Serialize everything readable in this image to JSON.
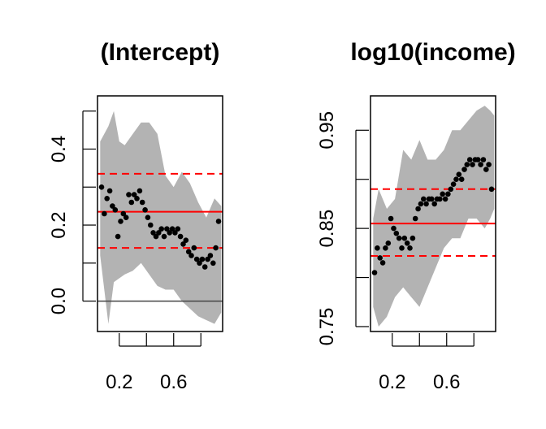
{
  "chart_data": [
    {
      "type": "scatter",
      "title": "(Intercept)",
      "xlabel": "",
      "ylabel": "",
      "xlim": [
        0.04,
        0.96
      ],
      "ylim": [
        -0.08,
        0.54
      ],
      "x_ticks": [
        0.2,
        0.6
      ],
      "x_tick_labels": [
        "0.2",
        "0.6"
      ],
      "x_minor_ticks": [
        0.2,
        0.4,
        0.6,
        0.8
      ],
      "y_ticks": [
        0.0,
        0.1,
        0.2,
        0.3,
        0.4,
        0.5
      ],
      "y_tick_labels": [
        {
          "value": 0.0,
          "label": "0.0"
        },
        {
          "value": 0.2,
          "label": "0.2"
        },
        {
          "value": 0.4,
          "label": "0.4"
        }
      ],
      "reference_lines": {
        "zero": 0.0,
        "mean": 0.235,
        "lower": 0.14,
        "upper": 0.335
      },
      "band": {
        "x": [
          0.06,
          0.12,
          0.16,
          0.2,
          0.24,
          0.3,
          0.36,
          0.42,
          0.48,
          0.54,
          0.6,
          0.66,
          0.72,
          0.78,
          0.84,
          0.9,
          0.95
        ],
        "upper": [
          0.42,
          0.46,
          0.5,
          0.42,
          0.41,
          0.44,
          0.47,
          0.47,
          0.44,
          0.33,
          0.3,
          0.34,
          0.31,
          0.26,
          0.22,
          0.27,
          0.25
        ],
        "lower": [
          0.12,
          -0.06,
          0.05,
          0.06,
          0.07,
          0.08,
          0.1,
          0.07,
          0.04,
          0.03,
          0.03,
          0.0,
          -0.02,
          -0.04,
          -0.05,
          -0.06,
          -0.03
        ]
      },
      "series": [
        {
          "x": [
            0.07,
            0.09,
            0.11,
            0.13,
            0.15,
            0.17,
            0.19,
            0.21,
            0.23,
            0.25,
            0.27,
            0.29,
            0.31,
            0.33,
            0.35,
            0.37,
            0.39,
            0.41,
            0.43,
            0.45,
            0.47,
            0.49,
            0.51,
            0.53,
            0.55,
            0.57,
            0.59,
            0.61,
            0.63,
            0.65,
            0.67,
            0.69,
            0.71,
            0.73,
            0.75,
            0.77,
            0.79,
            0.81,
            0.83,
            0.85,
            0.87,
            0.89,
            0.91,
            0.93
          ],
          "y": [
            0.3,
            0.23,
            0.27,
            0.29,
            0.25,
            0.24,
            0.17,
            0.21,
            0.23,
            0.22,
            0.28,
            0.26,
            0.28,
            0.27,
            0.29,
            0.26,
            0.24,
            0.22,
            0.2,
            0.18,
            0.17,
            0.18,
            0.19,
            0.17,
            0.19,
            0.18,
            0.19,
            0.18,
            0.19,
            0.17,
            0.15,
            0.16,
            0.13,
            0.12,
            0.14,
            0.11,
            0.1,
            0.11,
            0.09,
            0.11,
            0.12,
            0.1,
            0.14,
            0.21
          ]
        }
      ]
    },
    {
      "type": "scatter",
      "title": "log10(income)",
      "xlabel": "",
      "ylabel": "",
      "xlim": [
        0.04,
        0.96
      ],
      "ylim": [
        0.745,
        0.985
      ],
      "x_ticks": [
        0.2,
        0.6
      ],
      "x_tick_labels": [
        "0.2",
        "0.6"
      ],
      "x_minor_ticks": [
        0.2,
        0.4,
        0.6,
        0.8
      ],
      "y_ticks": [
        0.75,
        0.8,
        0.85,
        0.9,
        0.95
      ],
      "y_tick_labels": [
        {
          "value": 0.75,
          "label": "0.75"
        },
        {
          "value": 0.85,
          "label": "0.85"
        },
        {
          "value": 0.95,
          "label": "0.95"
        }
      ],
      "reference_lines": {
        "mean": 0.855,
        "lower": 0.822,
        "upper": 0.89
      },
      "band": {
        "x": [
          0.06,
          0.1,
          0.16,
          0.22,
          0.28,
          0.34,
          0.4,
          0.46,
          0.52,
          0.58,
          0.64,
          0.7,
          0.76,
          0.82,
          0.88,
          0.92,
          0.95
        ],
        "upper": [
          0.86,
          0.89,
          0.87,
          0.88,
          0.93,
          0.92,
          0.94,
          0.92,
          0.92,
          0.93,
          0.95,
          0.95,
          0.96,
          0.97,
          0.975,
          0.97,
          0.965
        ],
        "lower": [
          0.77,
          0.75,
          0.76,
          0.78,
          0.79,
          0.78,
          0.77,
          0.79,
          0.81,
          0.83,
          0.84,
          0.84,
          0.86,
          0.86,
          0.85,
          0.86,
          0.87
        ]
      },
      "series": [
        {
          "x": [
            0.07,
            0.09,
            0.11,
            0.13,
            0.15,
            0.17,
            0.19,
            0.21,
            0.23,
            0.25,
            0.27,
            0.29,
            0.31,
            0.33,
            0.35,
            0.37,
            0.39,
            0.41,
            0.43,
            0.45,
            0.47,
            0.49,
            0.51,
            0.53,
            0.55,
            0.57,
            0.59,
            0.61,
            0.63,
            0.65,
            0.67,
            0.69,
            0.71,
            0.73,
            0.75,
            0.77,
            0.79,
            0.81,
            0.83,
            0.85,
            0.87,
            0.89,
            0.91,
            0.93
          ],
          "y": [
            0.805,
            0.83,
            0.82,
            0.815,
            0.83,
            0.835,
            0.86,
            0.85,
            0.845,
            0.84,
            0.83,
            0.84,
            0.835,
            0.83,
            0.84,
            0.86,
            0.87,
            0.875,
            0.88,
            0.875,
            0.88,
            0.88,
            0.875,
            0.88,
            0.88,
            0.885,
            0.88,
            0.885,
            0.89,
            0.895,
            0.9,
            0.905,
            0.9,
            0.91,
            0.915,
            0.92,
            0.915,
            0.92,
            0.92,
            0.915,
            0.92,
            0.91,
            0.915,
            0.89
          ]
        }
      ]
    }
  ]
}
